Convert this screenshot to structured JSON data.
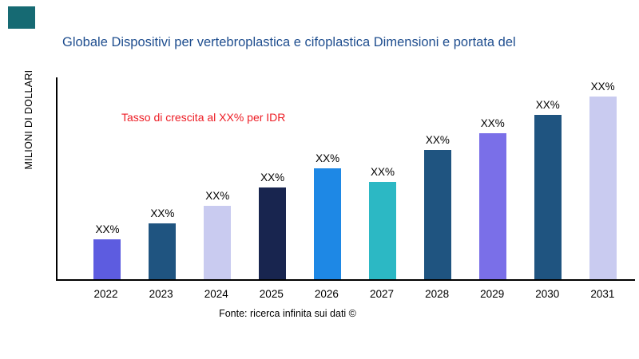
{
  "logo": {
    "color": "#166a73"
  },
  "chart_data": {
    "type": "bar",
    "title": "Globale Dispositivi per vertebroplastica e cifoplastica Dimensioni e portata del",
    "title_color": "#1f4e8f",
    "ylabel": "MILIONI DI DOLLARI",
    "xlabel": "",
    "annotation": "Tasso di crescita al XX% per IDR",
    "annotation_color": "#ed1c24",
    "source": "Fonte: ricerca infinita sui dati ©",
    "categories": [
      "2022",
      "2023",
      "2024",
      "2025",
      "2026",
      "2027",
      "2028",
      "2029",
      "2030",
      "2031"
    ],
    "values": [
      50,
      71,
      93,
      116,
      140,
      123,
      163,
      184,
      208,
      231
    ],
    "bar_labels": [
      "XX%",
      "XX%",
      "XX%",
      "XX%",
      "XX%",
      "XX%",
      "XX%",
      "XX%",
      "XX%",
      "XX%"
    ],
    "bar_colors": [
      "#5d5ce0",
      "#1f5480",
      "#c9cbf0",
      "#18254f",
      "#1e88e5",
      "#2cb8c4",
      "#1f5480",
      "#7a6fe8",
      "#1f5480",
      "#c9cbf0"
    ],
    "ylim": [
      0,
      255
    ],
    "grid": false,
    "legend": "none"
  }
}
